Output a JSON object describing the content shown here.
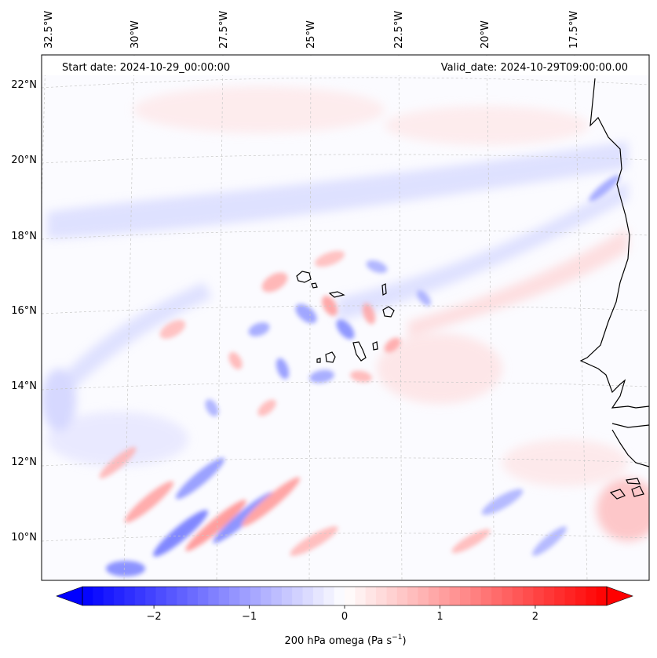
{
  "header": {
    "start_date": "Start date: 2024-10-29_00:00:00",
    "valid_date": "Valid_date: 2024-10-29T09:00:00.00"
  },
  "map": {
    "projection": "lambert-conformal",
    "gridlines": "on",
    "lon_labels": [
      "32.5°W",
      "30°W",
      "27.5°W",
      "25°W",
      "22.5°W",
      "20°W",
      "17.5°W"
    ],
    "lat_labels": [
      "22°N",
      "20°N",
      "18°N",
      "16°N",
      "14°N",
      "12°N",
      "10°N"
    ],
    "field": "200 hPa omega",
    "features": [
      "Cape Verde islands",
      "West African coastline (Senegal, Gambia, Guinea-Bissau)"
    ],
    "colors": {
      "negative": "#0000ff",
      "zero": "#ffffff",
      "positive": "#ff0000"
    }
  },
  "colorbar": {
    "ticks": [
      "−2",
      "−1",
      "0",
      "1",
      "2"
    ],
    "min": -2.75,
    "max": 2.75,
    "extend": "both",
    "label": "200 hPa omega (Pa s",
    "label_exp": "−1",
    "label_end": ")"
  }
}
